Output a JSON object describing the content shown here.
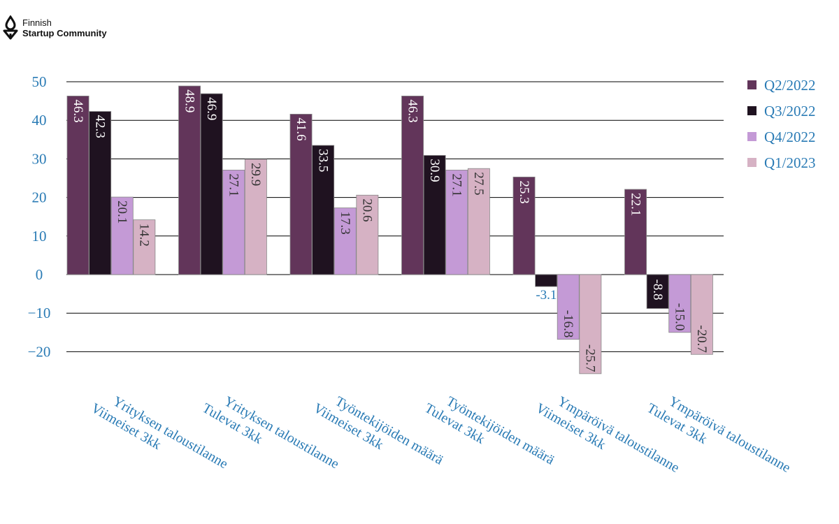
{
  "brand": {
    "line1": "Finnish",
    "line2": "Startup Community"
  },
  "chart_data": {
    "type": "bar",
    "title": "",
    "xlabel": "",
    "ylabel": "",
    "ylim": [
      -25,
      50
    ],
    "yticks": [
      50,
      40,
      30,
      20,
      10,
      0,
      -10,
      -20
    ],
    "ytick_labels": [
      "50",
      "40",
      "30",
      "20",
      "10",
      "0",
      "−10",
      "−20"
    ],
    "legend_position": "top-right",
    "categories": [
      [
        "Yrityksen taloustilanne",
        "Viimeiset 3kk"
      ],
      [
        "Yrityksen taloustilanne",
        "Tulevat 3kk"
      ],
      [
        "Työntekijöiden määrä",
        "Viimeiset 3kk"
      ],
      [
        "Työntekijöiden määrä",
        "Tulevat 3kk"
      ],
      [
        "Ympäröivä taloustilanne",
        "Viimeiset 3kk"
      ],
      [
        "Ympäröivä taloustilanne",
        "Tulevat 3kk"
      ]
    ],
    "series": [
      {
        "name": "Q2/2022",
        "color": "#62355a",
        "label_color": "#ffffff",
        "values": [
          46.3,
          48.9,
          41.6,
          46.3,
          25.3,
          22.1
        ],
        "labels": [
          "46.3",
          "48.9",
          "41.6",
          "46.3",
          "25.3",
          "22.1"
        ]
      },
      {
        "name": "Q3/2022",
        "color": "#1f1220",
        "label_color": "#ffffff",
        "values": [
          42.3,
          46.9,
          33.5,
          30.9,
          -3.1,
          -8.8
        ],
        "labels": [
          "42.3",
          "46.9",
          "33.5",
          "30.9",
          "-3.1",
          "-8.8"
        ]
      },
      {
        "name": "Q4/2022",
        "color": "#c49ad6",
        "label_color": "#333333",
        "values": [
          20.1,
          27.1,
          17.3,
          27.1,
          -16.8,
          -15.0
        ],
        "labels": [
          "20.1",
          "27.1",
          "17.3",
          "27.1",
          "-16.8",
          "-15.0"
        ]
      },
      {
        "name": "Q1/2023",
        "color": "#d6b2c4",
        "label_color": "#333333",
        "values": [
          14.2,
          29.9,
          20.6,
          27.5,
          -25.7,
          -20.7
        ],
        "labels": [
          "14.2",
          "29.9",
          "20.6",
          "27.5",
          "-25.7",
          "-20.7"
        ]
      }
    ]
  }
}
